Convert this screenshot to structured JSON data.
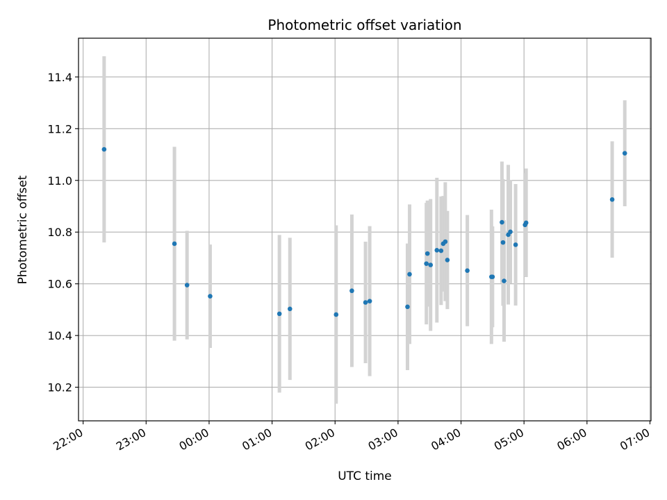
{
  "chart_data": {
    "type": "scatter",
    "title": "Photometric offset variation",
    "xlabel": "UTC time",
    "ylabel": "Photometric offset",
    "x_ticks": [
      "22:00",
      "23:00",
      "00:00",
      "01:00",
      "02:00",
      "03:00",
      "04:00",
      "05:00",
      "06:00",
      "07:00"
    ],
    "y_ticks": [
      "10.2",
      "10.4",
      "10.6",
      "10.8",
      "11.0",
      "11.2",
      "11.4"
    ],
    "xlim": [
      "22:00",
      "07:01"
    ],
    "ylim": [
      10.07,
      11.55
    ],
    "grid": true,
    "legend": "none",
    "colors": {
      "points": "#1f77b4",
      "error_bars": "#d3d3d3",
      "grid": "#b0b0b0"
    },
    "points": [
      {
        "t": "22:20",
        "y": 11.12,
        "err": 0.36
      },
      {
        "t": "23:27",
        "y": 10.755,
        "err": 0.375
      },
      {
        "t": "23:39",
        "y": 10.595,
        "err": 0.21
      },
      {
        "t": "00:01",
        "y": 10.552,
        "err": 0.2
      },
      {
        "t": "01:07",
        "y": 10.484,
        "err": 0.305
      },
      {
        "t": "01:17",
        "y": 10.503,
        "err": 0.275
      },
      {
        "t": "02:01",
        "y": 10.481,
        "err": 0.345
      },
      {
        "t": "02:16",
        "y": 10.573,
        "err": 0.295
      },
      {
        "t": "02:29",
        "y": 10.528,
        "err": 0.235
      },
      {
        "t": "02:33",
        "y": 10.533,
        "err": 0.29
      },
      {
        "t": "03:09",
        "y": 10.511,
        "err": 0.245
      },
      {
        "t": "03:11",
        "y": 10.637,
        "err": 0.27
      },
      {
        "t": "03:27",
        "y": 10.678,
        "err": 0.235
      },
      {
        "t": "03:28",
        "y": 10.717,
        "err": 0.205
      },
      {
        "t": "03:31",
        "y": 10.673,
        "err": 0.255
      },
      {
        "t": "03:37",
        "y": 10.73,
        "err": 0.28
      },
      {
        "t": "03:41",
        "y": 10.728,
        "err": 0.21
      },
      {
        "t": "03:43",
        "y": 10.755,
        "err": 0.185
      },
      {
        "t": "03:45",
        "y": 10.763,
        "err": 0.23
      },
      {
        "t": "03:47",
        "y": 10.692,
        "err": 0.19
      },
      {
        "t": "04:06",
        "y": 10.651,
        "err": 0.215
      },
      {
        "t": "04:29",
        "y": 10.627,
        "err": 0.26
      },
      {
        "t": "04:30",
        "y": 10.627,
        "err": 0.195
      },
      {
        "t": "04:39",
        "y": 10.838,
        "err": 0.235
      },
      {
        "t": "04:40",
        "y": 10.76,
        "err": 0.245
      },
      {
        "t": "04:41",
        "y": 10.611,
        "err": 0.235
      },
      {
        "t": "04:45",
        "y": 10.79,
        "err": 0.27
      },
      {
        "t": "04:47",
        "y": 10.801,
        "err": 0.2
      },
      {
        "t": "04:52",
        "y": 10.751,
        "err": 0.235
      },
      {
        "t": "05:01",
        "y": 10.828,
        "err": 0.2
      },
      {
        "t": "05:02",
        "y": 10.836,
        "err": 0.21
      },
      {
        "t": "06:24",
        "y": 10.926,
        "err": 0.225
      },
      {
        "t": "06:36",
        "y": 11.105,
        "err": 0.205
      }
    ]
  }
}
